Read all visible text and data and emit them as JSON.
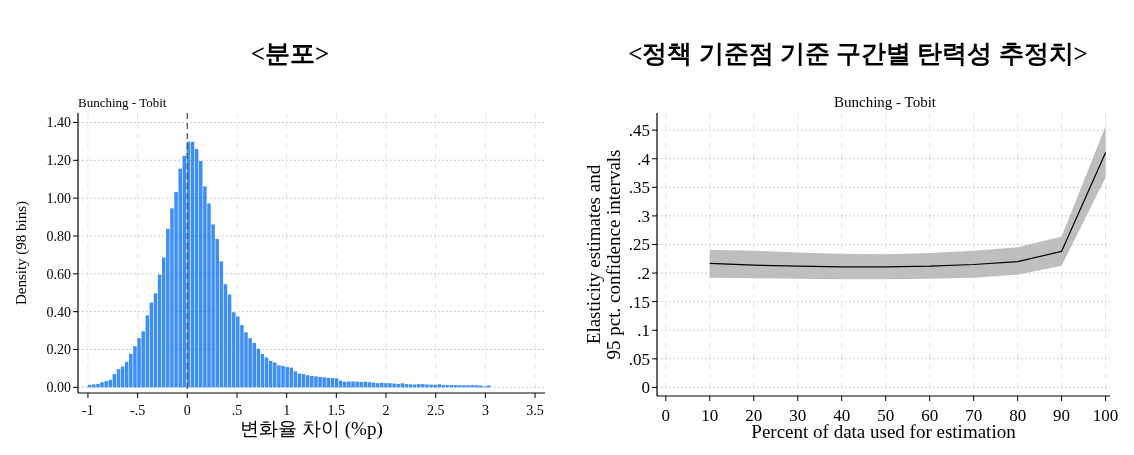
{
  "chart_data": [
    {
      "type": "histogram",
      "title": "<분포>",
      "subtitle": "Bunching - Tobit",
      "xlabel": "변화율 차이 (%p)",
      "ylabel": "Density (98 bins)",
      "color": "#3d8ff5",
      "bins": [
        -1,
        -0.9586,
        -0.9172,
        -0.8758,
        -0.8344,
        -0.793,
        -0.7516,
        -0.7102,
        -0.6688,
        -0.6274,
        -0.586,
        -0.5446,
        -0.5032,
        -0.4618,
        -0.4204,
        -0.379,
        -0.3376,
        -0.2962,
        -0.2548,
        -0.2134,
        -0.172,
        -0.1306,
        -0.0892,
        -0.0478,
        -0.0064,
        0.035,
        0.0764,
        0.1178,
        0.1592,
        0.2006,
        0.242,
        0.2834,
        0.3248,
        0.3662,
        0.4076,
        0.449,
        0.4904,
        0.5318,
        0.5732,
        0.6146,
        0.656,
        0.6974,
        0.7388,
        0.7802,
        0.8216,
        0.863,
        0.9044,
        0.9458,
        0.9872,
        1.0286,
        1.07,
        1.1114,
        1.1528,
        1.1942,
        1.2356,
        1.277,
        1.3184,
        1.3598,
        1.4012,
        1.4426,
        1.484,
        1.5254,
        1.5668,
        1.6082,
        1.6496,
        1.691,
        1.7324,
        1.7738,
        1.8152,
        1.8566,
        1.898,
        1.9394,
        1.9808,
        2.0222,
        2.0636,
        2.105,
        2.1464,
        2.1878,
        2.2292,
        2.2706,
        2.312,
        2.3534,
        2.3948,
        2.4362,
        2.4776,
        2.519,
        2.5604,
        2.6018,
        2.6432,
        2.6846,
        2.726,
        2.7674,
        2.8088,
        2.8502,
        2.8916,
        2.933,
        2.9744,
        3.0158,
        3.0572
      ],
      "values": [
        0.013,
        0.015,
        0.018,
        0.027,
        0.033,
        0.04,
        0.07,
        0.096,
        0.11,
        0.135,
        0.177,
        0.217,
        0.26,
        0.296,
        0.38,
        0.448,
        0.497,
        0.596,
        0.686,
        0.838,
        0.946,
        1.033,
        1.156,
        1.224,
        1.298,
        1.298,
        1.26,
        1.196,
        1.062,
        0.972,
        0.861,
        0.784,
        0.666,
        0.545,
        0.491,
        0.397,
        0.374,
        0.329,
        0.291,
        0.26,
        0.235,
        0.204,
        0.176,
        0.158,
        0.14,
        0.131,
        0.116,
        0.113,
        0.108,
        0.104,
        0.085,
        0.073,
        0.07,
        0.064,
        0.06,
        0.058,
        0.055,
        0.053,
        0.05,
        0.049,
        0.047,
        0.035,
        0.03,
        0.031,
        0.031,
        0.03,
        0.028,
        0.03,
        0.027,
        0.025,
        0.022,
        0.024,
        0.022,
        0.022,
        0.02,
        0.018,
        0.021,
        0.017,
        0.016,
        0.015,
        0.017,
        0.017,
        0.015,
        0.014,
        0.013,
        0.016,
        0.013,
        0.012,
        0.012,
        0.012,
        0.011,
        0.011,
        0.011,
        0.011,
        0.011,
        0.01,
        0.005,
        0.01
      ],
      "xlim": [
        -1.1,
        3.6
      ],
      "xticks": [
        -1,
        {
          "value": -0.5,
          "label": "-.5"
        },
        0,
        {
          "value": 0.5,
          "label": ".5"
        },
        1,
        1.5,
        2,
        2.5,
        3,
        3.5
      ],
      "ylim": [
        -0.03,
        1.45
      ],
      "yticks": [
        {
          "value": 0,
          "label": "0.00"
        },
        {
          "value": 0.2,
          "label": "0.20"
        },
        {
          "value": 0.4,
          "label": "0.40"
        },
        {
          "value": 0.6,
          "label": "0.60"
        },
        {
          "value": 0.8,
          "label": "0.80"
        },
        {
          "value": 1,
          "label": "1.00"
        },
        {
          "value": 1.2,
          "label": "1.20"
        },
        {
          "value": 1.4,
          "label": "1.40"
        }
      ],
      "grid": true,
      "ref_lines": [
        {
          "axis": "x",
          "value": 0,
          "color": "#555555",
          "line_style": "dashed"
        }
      ]
    },
    {
      "type": "line",
      "title": "<정책 기준점 기준 구간별 탄력성 추정치>",
      "subtitle": "Bunching - Tobit",
      "xlabel": "Percent of data used for estimation",
      "ylabel": "Elasticity estimates and\n95 pct. confidence intervals",
      "x": [
        10,
        20,
        30,
        40,
        50,
        60,
        70,
        80,
        90,
        100
      ],
      "series": [
        {
          "color": "#000000",
          "values": [
            0.217,
            0.214,
            0.212,
            0.211,
            0.211,
            0.212,
            0.215,
            0.22,
            0.238,
            0.411
          ],
          "lower": [
            0.192,
            0.191,
            0.19,
            0.189,
            0.189,
            0.19,
            0.192,
            0.197,
            0.213,
            0.367
          ],
          "upper": [
            0.241,
            0.239,
            0.236,
            0.234,
            0.233,
            0.235,
            0.239,
            0.245,
            0.264,
            0.457
          ]
        }
      ],
      "xlim": [
        -2,
        101
      ],
      "xticks": [
        0,
        10,
        20,
        30,
        40,
        50,
        60,
        70,
        80,
        90,
        100
      ],
      "ylim": [
        -0.015,
        0.48
      ],
      "yticks": [
        0,
        {
          "value": 0.05,
          "label": ".05"
        },
        {
          "value": 0.1,
          "label": ".1"
        },
        {
          "value": 0.15,
          "label": ".15"
        },
        {
          "value": 0.2,
          "label": ".2"
        },
        {
          "value": 0.25,
          "label": ".25"
        },
        {
          "value": 0.3,
          "label": ".3"
        },
        {
          "value": 0.35,
          "label": ".35"
        },
        {
          "value": 0.4,
          "label": ".4"
        },
        {
          "value": 0.45,
          "label": ".45"
        }
      ],
      "grid": true
    }
  ]
}
